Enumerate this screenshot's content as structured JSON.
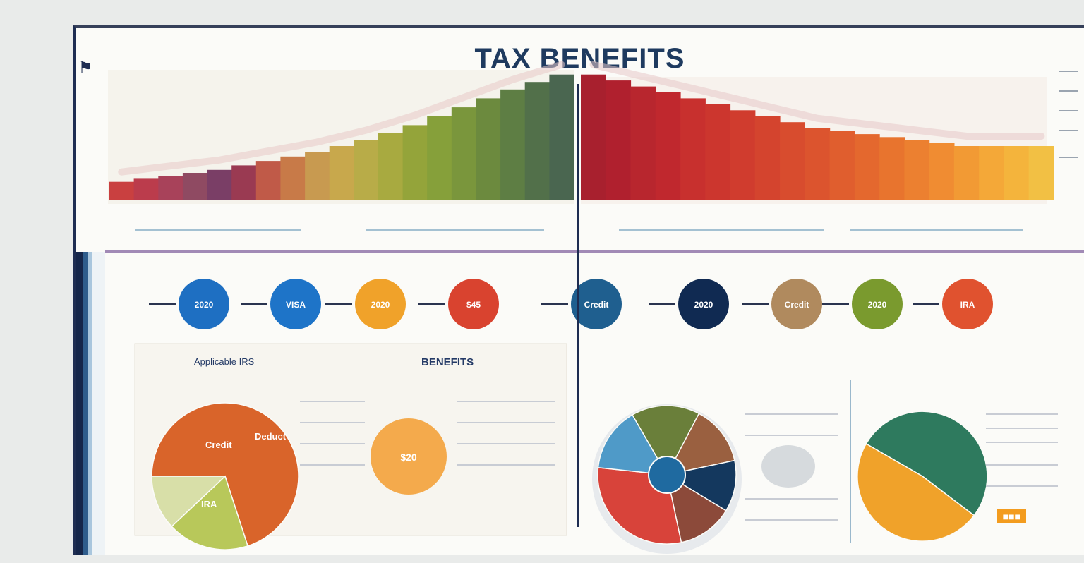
{
  "title": "TAX BENEFITS",
  "chart_data": [
    {
      "type": "bar",
      "id": "rising-bars",
      "values": [
        12,
        14,
        16,
        18,
        20,
        23,
        26,
        29,
        32,
        36,
        40,
        45,
        50,
        56,
        62,
        68,
        74,
        79,
        84
      ],
      "ylim": [
        0,
        90
      ],
      "colors": [
        "#c94040",
        "#bb3c4c",
        "#a8425a",
        "#8f4a62",
        "#7a3e66",
        "#9a3a52",
        "#c05a48",
        "#c87a48",
        "#c89a50",
        "#c8a84c",
        "#b8ac48",
        "#a8aa40",
        "#94a43a",
        "#86a03a",
        "#7a963c",
        "#6c8a3e",
        "#5e7e44",
        "#52704a",
        "#4a6650"
      ]
    },
    {
      "type": "bar",
      "id": "falling-bars",
      "values": [
        84,
        80,
        76,
        72,
        68,
        64,
        60,
        56,
        52,
        48,
        46,
        44,
        42,
        40,
        38,
        36,
        36,
        36,
        36
      ],
      "ylim": [
        0,
        90
      ],
      "colors": [
        "#a8202e",
        "#b0202e",
        "#b8262e",
        "#c0282e",
        "#c8302e",
        "#cc362e",
        "#d03c2e",
        "#d4442e",
        "#d84c2e",
        "#dc542e",
        "#e05e2e",
        "#e4682e",
        "#e8742e",
        "#ec8030",
        "#f08c32",
        "#f29a34",
        "#f4a838",
        "#f4b43c",
        "#f2c044"
      ]
    },
    {
      "type": "pie",
      "id": "left-pie",
      "values": [
        70,
        18,
        12
      ],
      "colors": [
        "#d9642a",
        "#b8c85a",
        "#d8dfa8"
      ]
    },
    {
      "type": "pie",
      "id": "center-pie",
      "values": [
        16,
        14,
        12,
        13,
        30,
        15
      ],
      "colors": [
        "#6a7f3a",
        "#9a6040",
        "#14385e",
        "#8c4a3a",
        "#d8433a",
        "#4f9ac8"
      ]
    },
    {
      "type": "pie",
      "id": "right-pie",
      "values": [
        52,
        48
      ],
      "colors": [
        "#2e7a5e",
        "#f0a22a"
      ]
    }
  ],
  "circles": {
    "items": [
      {
        "color": "#1e6fc2",
        "label": "2020"
      },
      {
        "color": "#1e74c8",
        "label": "VISA"
      },
      {
        "color": "#f0a22a",
        "label": "2020"
      },
      {
        "color": "#d9432f",
        "label": "$45"
      },
      {
        "color": "#1f5f8f",
        "label": "Credit"
      },
      {
        "color": "#102a52",
        "label": "2020"
      },
      {
        "color": "#b08a5e",
        "label": "Credit"
      },
      {
        "color": "#7a9a2e",
        "label": "2020"
      },
      {
        "color": "#e0522f",
        "label": "IRA"
      }
    ]
  },
  "colors": {
    "frame": "#1e2d52",
    "accent_purple": "#7a5a9a",
    "rule": "#8fb3c8"
  },
  "panels": {
    "left_heading": "Applicable IRS",
    "mid_heading": "BENEFITS",
    "left_pie_labels": [
      "Credit",
      "Deduct",
      "IRA"
    ],
    "small_circle_label": "$20"
  },
  "icons": {
    "corner": "bookmark-icon"
  }
}
